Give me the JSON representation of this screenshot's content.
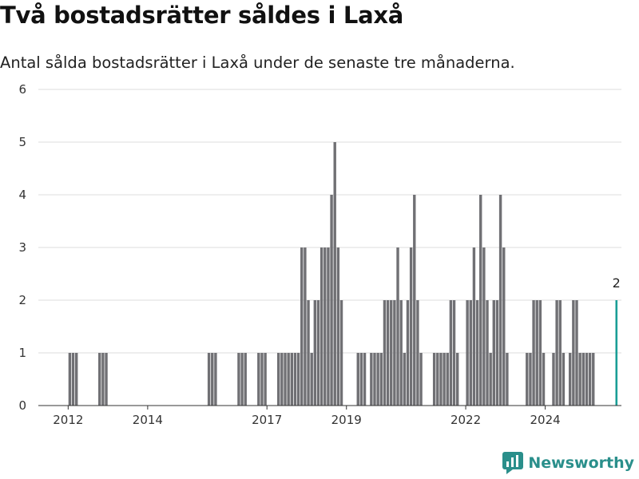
{
  "header": {
    "title": "Två bostadsrätter såldes i Laxå",
    "subtitle": "Antal sålda bostadsrätter i Laxå under de senaste tre månaderna."
  },
  "brand": {
    "name": "Newsworthy",
    "color": "#2a8f8b",
    "icon": "newsworthy-logo-icon"
  },
  "colors": {
    "bar": "#707074",
    "highlight": "#1a9e96",
    "grid": "#dcdcdc",
    "axis": "#333333"
  },
  "chart_data": {
    "type": "bar",
    "title": "Två bostadsrätter såldes i Laxå",
    "subtitle": "Antal sålda bostadsrätter i Laxå under de senaste tre månaderna.",
    "xlabel": "",
    "ylabel": "",
    "ylim": [
      0,
      6
    ],
    "yticks": [
      "0",
      "1",
      "2",
      "3",
      "4",
      "5",
      "6"
    ],
    "xticks": [
      "2012",
      "2014",
      "2017",
      "2019",
      "2022",
      "2024"
    ],
    "xlim": [
      "2011-04",
      "2025-12"
    ],
    "grid": true,
    "highlight_label": "2",
    "x": [
      "2012-01",
      "2012-02",
      "2012-03",
      "2012-10",
      "2012-11",
      "2012-12",
      "2015-07",
      "2015-08",
      "2015-09",
      "2016-04",
      "2016-05",
      "2016-06",
      "2016-10",
      "2016-11",
      "2016-12",
      "2017-04",
      "2017-05",
      "2017-06",
      "2017-07",
      "2017-08",
      "2017-09",
      "2017-10",
      "2017-11",
      "2017-12",
      "2018-01",
      "2018-02",
      "2018-03",
      "2018-04",
      "2018-05",
      "2018-06",
      "2018-07",
      "2018-08",
      "2018-09",
      "2018-10",
      "2018-11",
      "2018-12",
      "2019-01",
      "2019-04",
      "2019-05",
      "2019-06",
      "2019-07",
      "2019-08",
      "2019-09",
      "2019-10",
      "2019-11",
      "2019-12",
      "2020-01",
      "2020-02",
      "2020-03",
      "2020-04",
      "2020-05",
      "2020-06",
      "2020-07",
      "2020-08",
      "2020-09",
      "2020-10",
      "2020-11",
      "2020-12",
      "2021-01",
      "2021-03",
      "2021-04",
      "2021-05",
      "2021-06",
      "2021-07",
      "2021-08",
      "2021-09",
      "2021-10",
      "2021-11",
      "2021-12",
      "2022-01",
      "2022-02",
      "2022-03",
      "2022-04",
      "2022-05",
      "2022-06",
      "2022-07",
      "2022-08",
      "2022-09",
      "2022-10",
      "2022-11",
      "2022-12",
      "2023-01",
      "2023-02",
      "2023-03",
      "2023-04",
      "2023-07",
      "2023-08",
      "2023-09",
      "2023-10",
      "2023-11",
      "2023-12",
      "2024-01",
      "2024-03",
      "2024-04",
      "2024-05",
      "2024-06",
      "2024-08",
      "2024-09",
      "2024-10",
      "2024-11",
      "2024-12",
      "2025-01",
      "2025-02",
      "2025-03",
      "2025-04",
      "2025-10"
    ],
    "values": [
      1,
      1,
      1,
      1,
      1,
      1,
      1,
      1,
      1,
      1,
      1,
      1,
      1,
      1,
      1,
      1,
      1,
      1,
      1,
      1,
      1,
      1,
      3,
      3,
      2,
      1,
      2,
      2,
      3,
      3,
      3,
      4,
      5,
      3,
      2,
      0,
      0,
      1,
      1,
      1,
      0,
      1,
      1,
      1,
      1,
      2,
      2,
      2,
      2,
      3,
      2,
      1,
      2,
      3,
      4,
      2,
      1,
      0,
      0,
      1,
      1,
      1,
      1,
      1,
      2,
      2,
      1,
      0,
      0,
      2,
      2,
      3,
      2,
      4,
      3,
      2,
      1,
      2,
      2,
      4,
      3,
      1,
      0,
      0,
      0,
      1,
      1,
      2,
      2,
      2,
      1,
      0,
      1,
      2,
      2,
      1,
      1,
      2,
      2,
      1,
      1,
      1,
      1,
      1,
      0,
      2
    ],
    "highlight_index": 105
  }
}
